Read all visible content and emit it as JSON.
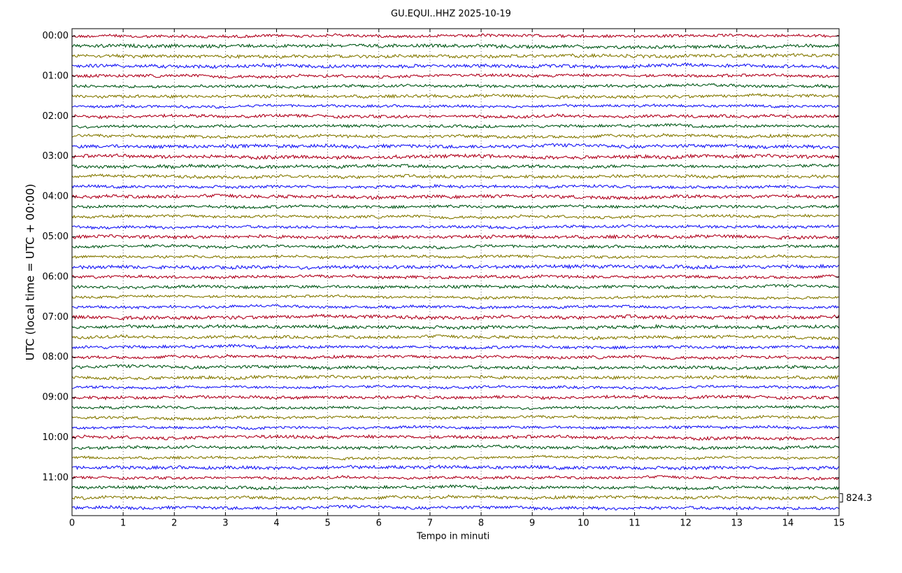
{
  "chart_data": {
    "type": "helicorder",
    "title": "GU.EQUI..HHZ 2025-10-19",
    "xlabel": "Tempo in minuti",
    "ylabel": "UTC (local time = UTC + 00:00)",
    "xlim": [
      0,
      15
    ],
    "xticks": [
      0,
      1,
      2,
      3,
      4,
      5,
      6,
      7,
      8,
      9,
      10,
      11,
      12,
      13,
      14,
      15
    ],
    "grid": true,
    "colors": [
      "#b0001c",
      "#005716",
      "#847900",
      "#1515f5"
    ],
    "categories": [
      "00:00",
      null,
      null,
      null,
      "01:00",
      null,
      null,
      null,
      "02:00",
      null,
      null,
      null,
      "03:00",
      null,
      null,
      null,
      "04:00",
      null,
      null,
      null,
      "05:00",
      null,
      null,
      null,
      "06:00",
      null,
      null,
      null,
      "07:00",
      null,
      null,
      null,
      "08:00",
      null,
      null,
      null,
      "09:00",
      null,
      null,
      null,
      "10:00",
      null,
      null,
      null,
      "11:00",
      null,
      null,
      null
    ],
    "scale": 824.3
  }
}
